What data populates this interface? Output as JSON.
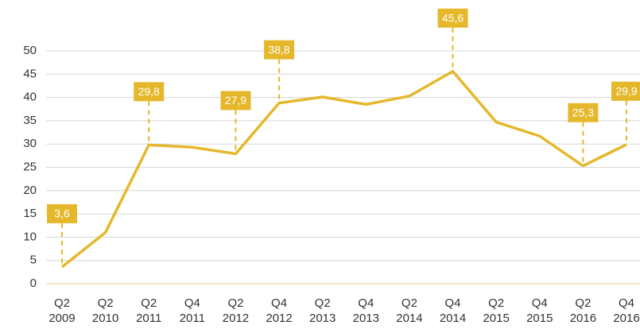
{
  "chart_data": {
    "type": "line",
    "categories": [
      "Q2 2009",
      "Q2 2010",
      "Q2 2011",
      "Q4 2011",
      "Q2 2012",
      "Q4 2012",
      "Q2 2013",
      "Q4 2013",
      "Q2 2014",
      "Q4 2014",
      "Q2 2015",
      "Q4 2015",
      "Q2 2016",
      "Q4 2016"
    ],
    "values": [
      3.6,
      11,
      29.8,
      29.3,
      27.9,
      38.8,
      40.1,
      38.5,
      40.3,
      45.6,
      34.7,
      31.7,
      25.3,
      29.9
    ],
    "value_labels": [
      "3,6",
      null,
      "29,8",
      null,
      "27,9",
      "38,8",
      null,
      null,
      null,
      "45,6",
      null,
      null,
      "25,3",
      "29,9"
    ],
    "color": "#e5b82c",
    "ylim": [
      0,
      50
    ],
    "yticks": [
      0,
      5,
      10,
      15,
      20,
      25,
      30,
      35,
      40,
      45,
      50
    ],
    "grid": true
  }
}
